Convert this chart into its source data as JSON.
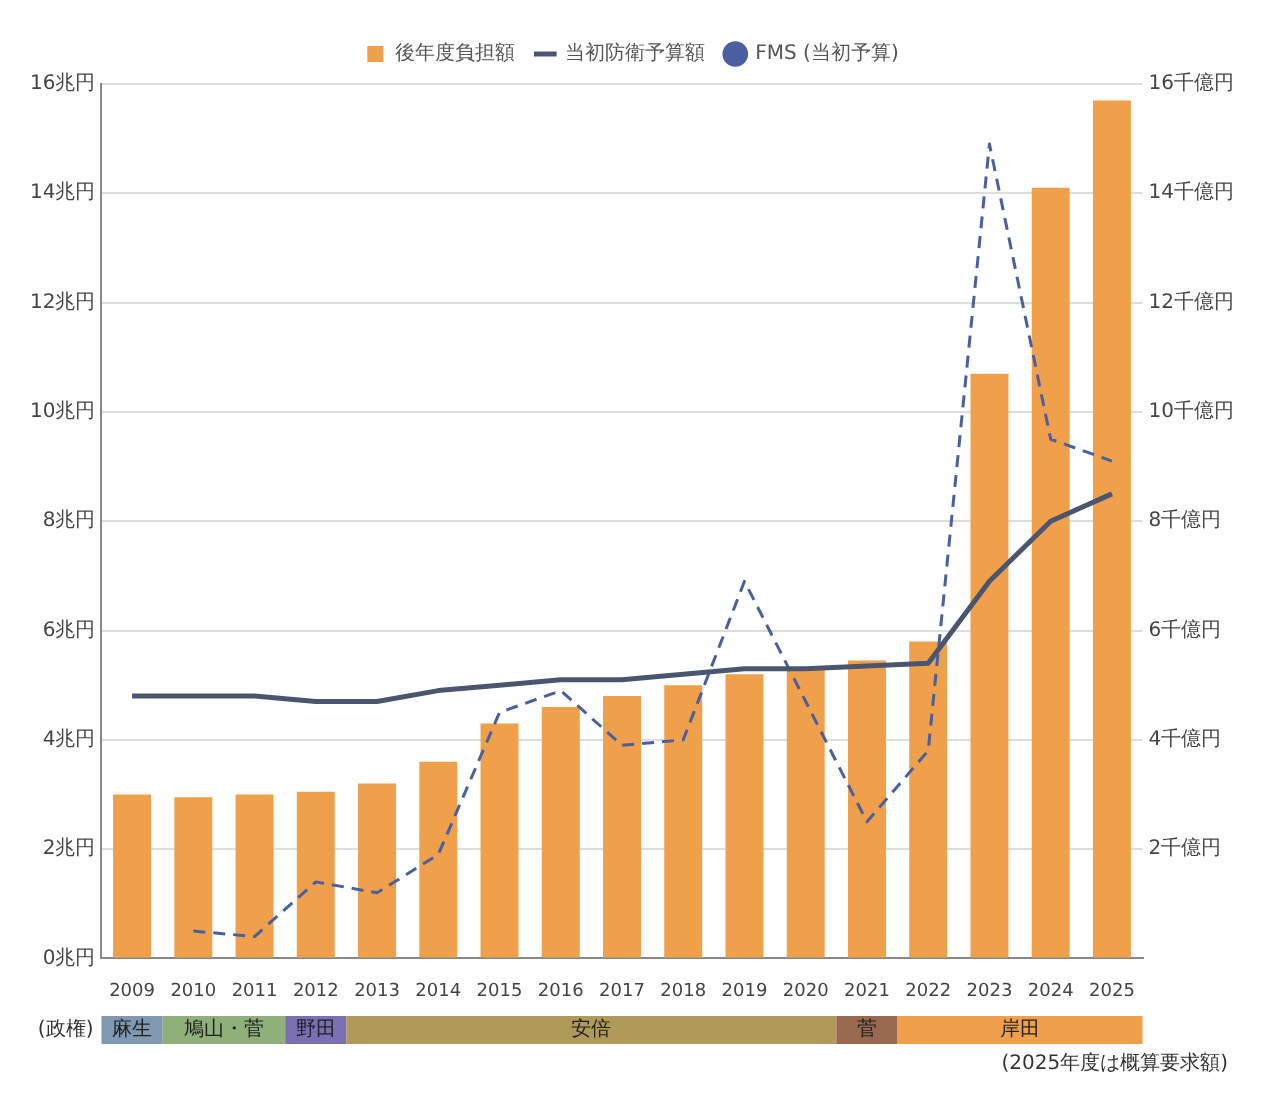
{
  "chart_data": {
    "type": "bar",
    "categories": [
      "2009",
      "2010",
      "2011",
      "2012",
      "2013",
      "2014",
      "2015",
      "2016",
      "2017",
      "2018",
      "2019",
      "2020",
      "2021",
      "2022",
      "2023",
      "2024",
      "2025"
    ],
    "series": [
      {
        "name": "後年度負担額",
        "color": "#f0a04b",
        "values": [
          3.0,
          2.95,
          3.0,
          3.05,
          3.2,
          3.6,
          4.3,
          4.6,
          4.8,
          5.0,
          5.2,
          5.3,
          5.45,
          5.8,
          10.7,
          14.1,
          15.7
        ]
      },
      {
        "name": "当初防衛予算額",
        "type": "line",
        "line_style": "solid",
        "color": "#4a5670",
        "values": [
          4.8,
          4.8,
          4.8,
          4.7,
          4.7,
          4.9,
          5.0,
          5.1,
          5.1,
          5.2,
          5.3,
          5.3,
          5.35,
          5.4,
          6.9,
          8.0,
          8.5
        ]
      },
      {
        "name": "FMS (当初予算)",
        "type": "line",
        "line_style": "dashed",
        "axis": "y2",
        "color": "#4a5fa0",
        "values": [
          null,
          0.5,
          0.4,
          1.4,
          1.2,
          1.9,
          4.5,
          4.9,
          3.9,
          4.0,
          6.9,
          4.7,
          2.5,
          3.8,
          14.9,
          9.5,
          9.1
        ]
      }
    ],
    "ylim": [
      0,
      16
    ],
    "yticks": [
      {
        "value": 0,
        "label": "0兆円"
      },
      {
        "value": 2,
        "label": "2兆円"
      },
      {
        "value": 4,
        "label": "4兆円"
      },
      {
        "value": 6,
        "label": "6兆円"
      },
      {
        "value": 8,
        "label": "8兆円"
      },
      {
        "value": 10,
        "label": "10兆円"
      },
      {
        "value": 12,
        "label": "12兆円"
      },
      {
        "value": 14,
        "label": "14兆円"
      },
      {
        "value": 16,
        "label": "16兆円"
      }
    ],
    "y2lim": [
      0,
      16
    ],
    "y2ticks": [
      {
        "value": 2,
        "label": "2千億円"
      },
      {
        "value": 4,
        "label": "4千億円"
      },
      {
        "value": 6,
        "label": "6千億円"
      },
      {
        "value": 8,
        "label": "8千億円"
      },
      {
        "value": 10,
        "label": "10千億円"
      },
      {
        "value": 12,
        "label": "12千億円"
      },
      {
        "value": 14,
        "label": "14千億円"
      },
      {
        "value": 16,
        "label": "16千億円"
      }
    ],
    "grid": "y",
    "legend": "top",
    "annotations": [
      "(政権)",
      "麻生",
      "鳩山・菅",
      "野田",
      "安倍",
      "菅",
      "岸田",
      "(2025年度は概算要求額)"
    ]
  }
}
